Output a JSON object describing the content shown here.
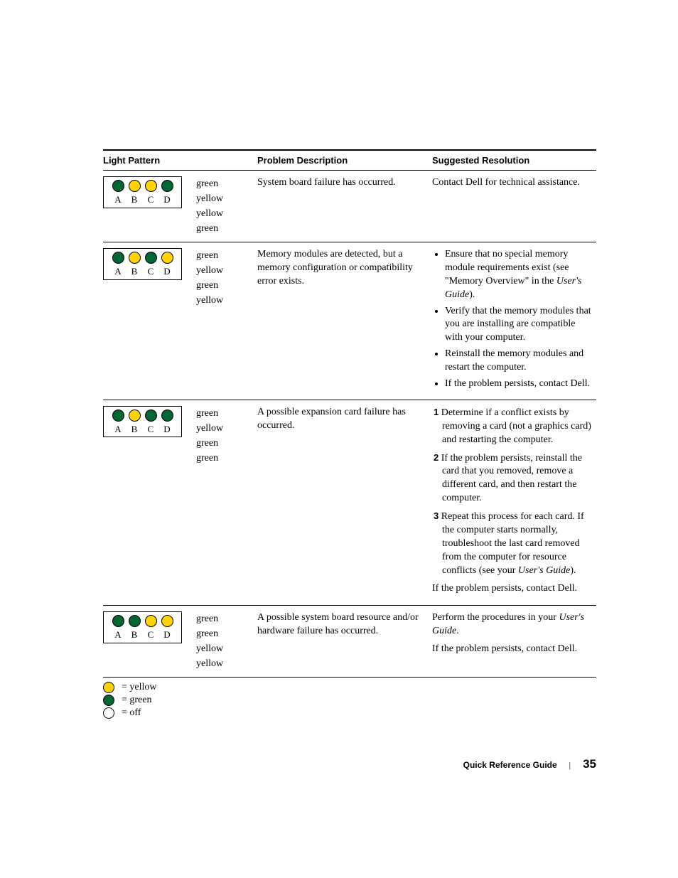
{
  "headers": {
    "pattern": "Light Pattern",
    "problem": "Problem Description",
    "resolution": "Suggested Resolution"
  },
  "light_letters": [
    "A",
    "B",
    "C",
    "D"
  ],
  "colors": {
    "green": "#006633",
    "yellow": "#ffd400",
    "off": "#ffffff"
  },
  "rows": [
    {
      "lights": [
        "green",
        "yellow",
        "yellow",
        "green"
      ],
      "labels": [
        "green",
        "yellow",
        "yellow",
        "green"
      ],
      "problem": "System board failure has occurred.",
      "resolution_plain": "Contact Dell for technical assistance."
    },
    {
      "lights": [
        "green",
        "yellow",
        "green",
        "yellow"
      ],
      "labels": [
        "green",
        "yellow",
        "green",
        "yellow"
      ],
      "problem": "Memory modules are detected, but a memory configuration or compatibility error exists.",
      "resolution_bullets": [
        "Ensure that no special memory module requirements exist (see \"Memory Overview\" in the <i>User's Guide</i>).",
        "Verify that the memory modules that you are installing are compatible with your computer.",
        "Reinstall the memory modules and restart the computer.",
        "If the problem persists, contact Dell."
      ]
    },
    {
      "lights": [
        "green",
        "yellow",
        "green",
        "green"
      ],
      "labels": [
        "green",
        "yellow",
        "green",
        "green"
      ],
      "problem": "A possible expansion card failure has occurred.",
      "resolution_numbered": [
        "Determine if a conflict exists by removing a card (not a graphics card) and restarting the computer.",
        "If the problem persists, reinstall the card that you removed, remove a different card, and then restart the computer.",
        "Repeat this process for each card. If the computer starts normally, troubleshoot the last card removed from the computer for resource conflicts (see your <i>User's Guide</i>)."
      ],
      "resolution_tail": "If the problem persists, contact Dell."
    },
    {
      "lights": [
        "green",
        "green",
        "yellow",
        "yellow"
      ],
      "labels": [
        "green",
        "green",
        "yellow",
        "yellow"
      ],
      "problem": "A possible system board resource and/or hardware failure has occurred.",
      "resolution_para": "Perform the procedures in your <i>User's Guide</i>.",
      "resolution_tail": "If the problem persists, contact Dell."
    }
  ],
  "legend": [
    {
      "color": "yellow",
      "text": "= yellow"
    },
    {
      "color": "green",
      "text": "= green"
    },
    {
      "color": "off",
      "text": "= off"
    }
  ],
  "footer": {
    "title": "Quick Reference Guide",
    "page": "35"
  }
}
